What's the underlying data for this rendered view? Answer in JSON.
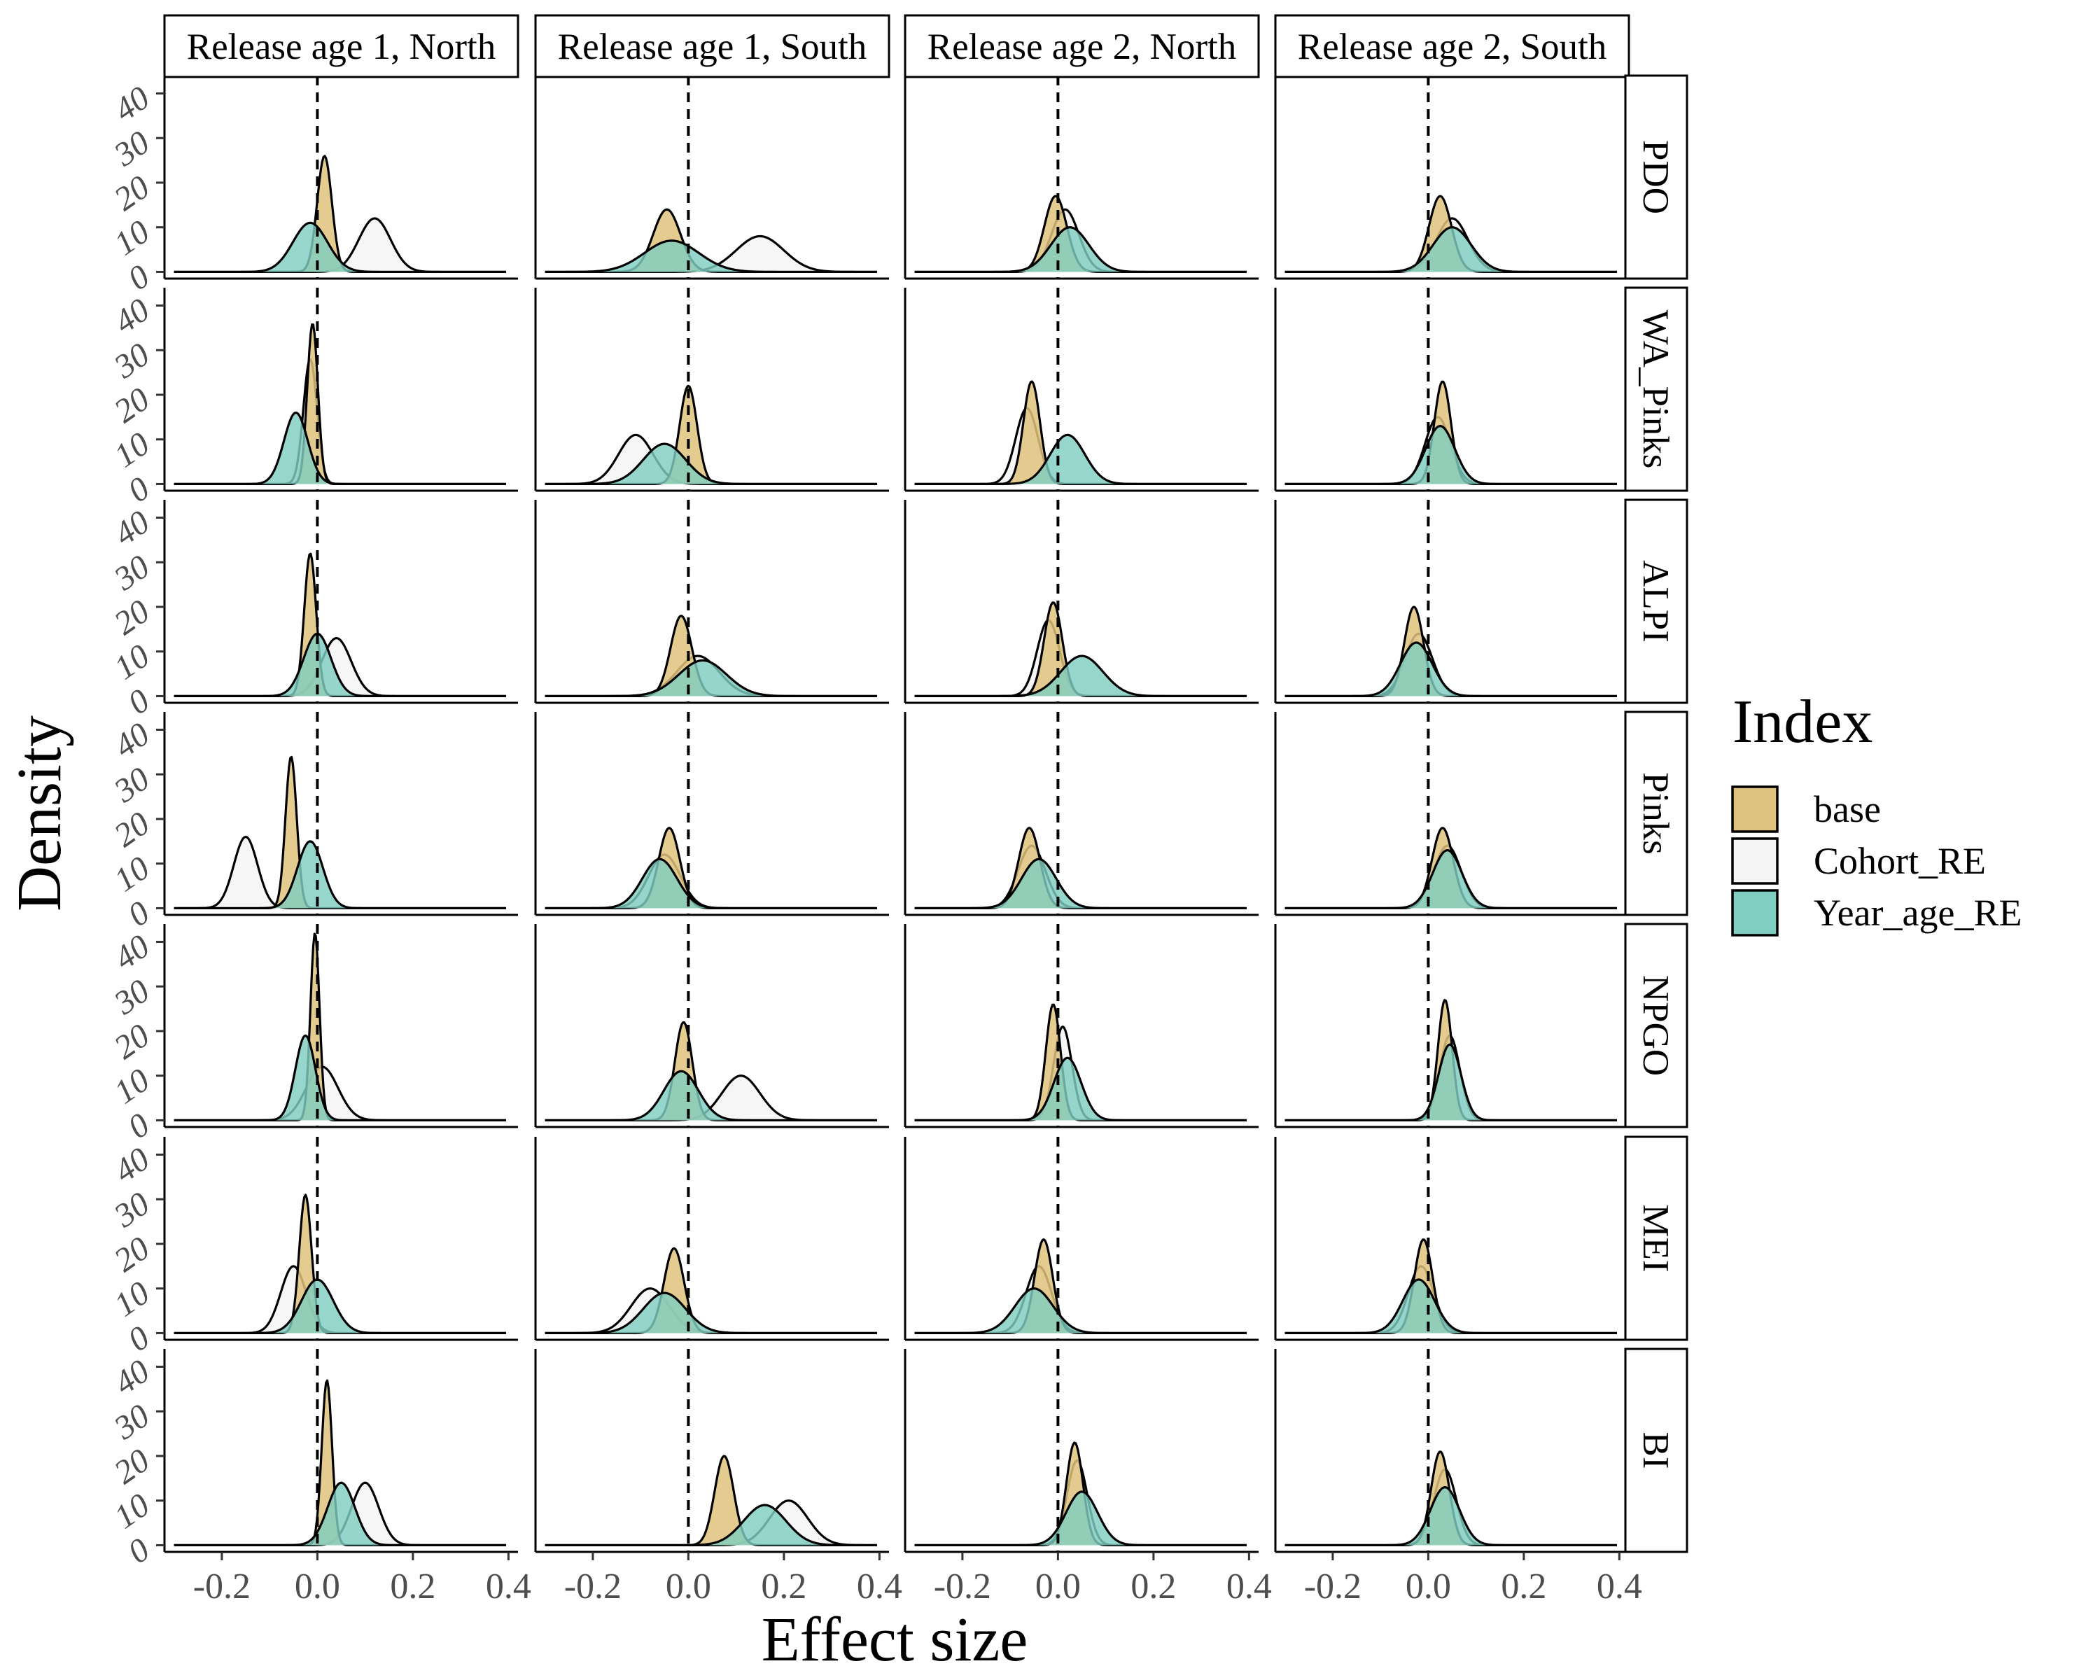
{
  "chart_data": {
    "type": "area",
    "subtype": "faceted density plot",
    "xlabel": "Effect size",
    "ylabel": "Density",
    "xlim": [
      -0.32,
      0.42
    ],
    "ylim": [
      -1.5,
      44
    ],
    "x_ticks": [
      "-0.2",
      "0.0",
      "0.2",
      "0.4"
    ],
    "x_tick_values": [
      -0.2,
      0.0,
      0.2,
      0.4
    ],
    "y_ticks": [
      "0",
      "10",
      "20",
      "30",
      "40"
    ],
    "y_tick_values": [
      0,
      10,
      20,
      30,
      40
    ],
    "reference_line_x": 0.0,
    "grid": false,
    "legend": {
      "title": "Index",
      "placement": "right",
      "entries": [
        "base",
        "Cohort_RE",
        "Year_age_RE"
      ]
    },
    "colors": {
      "base": "#dfc27d",
      "Cohort_RE": "#f5f5f5",
      "Year_age_RE": "#80cdc1"
    },
    "columns": [
      "Release age 1, North",
      "Release age 1, South",
      "Release age 2, North",
      "Release age 2, South"
    ],
    "rows": [
      "PDO",
      "WA_Pinks",
      "ALPI",
      "Pinks",
      "NPGO",
      "MEI",
      "BI"
    ],
    "series_note": "Each series value is [mean, peak density] of an approximately normal posterior; rows are ordered as 'rows', columns as 'columns'.",
    "series": [
      {
        "name": "base",
        "values": [
          [
            [
              0.015,
              26
            ],
            [
              -0.045,
              14
            ],
            [
              -0.005,
              17
            ],
            [
              0.025,
              17
            ]
          ],
          [
            [
              -0.01,
              36
            ],
            [
              0.0,
              22
            ],
            [
              -0.055,
              23
            ],
            [
              0.03,
              23
            ]
          ],
          [
            [
              -0.015,
              32
            ],
            [
              -0.015,
              18
            ],
            [
              -0.01,
              21
            ],
            [
              -0.03,
              20
            ]
          ],
          [
            [
              -0.055,
              34
            ],
            [
              -0.04,
              18
            ],
            [
              -0.06,
              18
            ],
            [
              0.03,
              18
            ]
          ],
          [
            [
              -0.005,
              42
            ],
            [
              -0.01,
              22
            ],
            [
              -0.01,
              26
            ],
            [
              0.035,
              27
            ]
          ],
          [
            [
              -0.025,
              31
            ],
            [
              -0.03,
              19
            ],
            [
              -0.03,
              21
            ],
            [
              -0.01,
              21
            ]
          ],
          [
            [
              0.02,
              37
            ],
            [
              0.075,
              20
            ],
            [
              0.035,
              23
            ],
            [
              0.025,
              21
            ]
          ]
        ]
      },
      {
        "name": "Cohort_RE",
        "values": [
          [
            [
              0.12,
              12
            ],
            [
              0.15,
              8
            ],
            [
              0.015,
              14
            ],
            [
              0.05,
              12
            ]
          ],
          [
            [
              -0.015,
              28
            ],
            [
              -0.11,
              11
            ],
            [
              -0.065,
              17
            ],
            [
              0.02,
              15
            ]
          ],
          [
            [
              0.04,
              13
            ],
            [
              0.02,
              9
            ],
            [
              -0.02,
              17
            ],
            [
              -0.02,
              14
            ]
          ],
          [
            [
              -0.15,
              16
            ],
            [
              -0.05,
              12
            ],
            [
              -0.055,
              14
            ],
            [
              0.04,
              14
            ]
          ],
          [
            [
              0.01,
              12
            ],
            [
              0.11,
              10
            ],
            [
              0.01,
              21
            ],
            [
              0.045,
              19
            ]
          ],
          [
            [
              -0.05,
              15
            ],
            [
              -0.08,
              10
            ],
            [
              -0.04,
              15
            ],
            [
              -0.015,
              15
            ]
          ],
          [
            [
              0.1,
              14
            ],
            [
              0.21,
              10
            ],
            [
              0.04,
              19
            ],
            [
              0.035,
              17
            ]
          ]
        ]
      },
      {
        "name": "Year_age_RE",
        "values": [
          [
            [
              -0.015,
              11
            ],
            [
              -0.035,
              7
            ],
            [
              0.025,
              10
            ],
            [
              0.05,
              10
            ]
          ],
          [
            [
              -0.045,
              16
            ],
            [
              -0.05,
              9
            ],
            [
              0.02,
              11
            ],
            [
              0.025,
              13
            ]
          ],
          [
            [
              0.0,
              14
            ],
            [
              0.03,
              8
            ],
            [
              0.05,
              9
            ],
            [
              -0.025,
              12
            ]
          ],
          [
            [
              -0.015,
              15
            ],
            [
              -0.06,
              11
            ],
            [
              -0.04,
              11
            ],
            [
              0.04,
              13
            ]
          ],
          [
            [
              -0.025,
              19
            ],
            [
              -0.015,
              11
            ],
            [
              0.02,
              14
            ],
            [
              0.045,
              17
            ]
          ],
          [
            [
              0.0,
              12
            ],
            [
              -0.05,
              9
            ],
            [
              -0.05,
              10
            ],
            [
              -0.02,
              12
            ]
          ],
          [
            [
              0.05,
              14
            ],
            [
              0.16,
              9
            ],
            [
              0.05,
              12
            ],
            [
              0.035,
              13
            ]
          ]
        ]
      }
    ]
  }
}
